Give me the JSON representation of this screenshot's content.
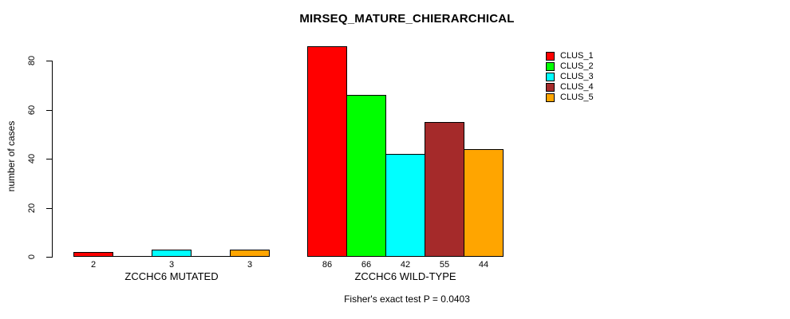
{
  "chart_data": {
    "type": "bar",
    "title": "MIRSEQ_MATURE_CHIERARCHICAL",
    "ylabel": "number of cases",
    "xlabel": "",
    "yticks": [
      0,
      20,
      40,
      60,
      80
    ],
    "ylim": [
      0,
      86
    ],
    "grid": false,
    "legend_position": "right",
    "series_names": [
      "CLUS_1",
      "CLUS_2",
      "CLUS_3",
      "CLUS_4",
      "CLUS_5"
    ],
    "series_colors": [
      "#FF0000",
      "#00FF00",
      "#00FFFF",
      "#A52A2A",
      "#FFA500"
    ],
    "groups": [
      {
        "label": "ZCCHC6 MUTATED",
        "values": [
          2,
          0,
          3,
          0,
          3
        ],
        "bar_labels": [
          "2",
          "",
          "3",
          "",
          "3"
        ]
      },
      {
        "label": "ZCCHC6 WILD-TYPE",
        "values": [
          86,
          66,
          42,
          55,
          44
        ],
        "bar_labels": [
          "86",
          "66",
          "42",
          "55",
          "44"
        ]
      }
    ],
    "annotation": "Fisher's exact test P = 0.0403"
  }
}
